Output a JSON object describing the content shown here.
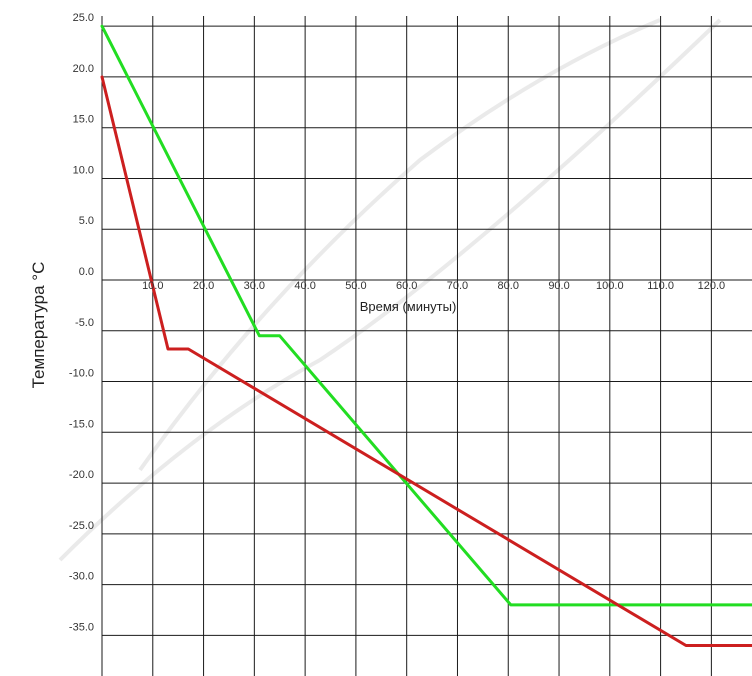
{
  "chart_data": {
    "type": "line",
    "xlabel": "Время (минуты)",
    "ylabel": "Температура °С",
    "x_ticks": [
      10,
      20,
      30,
      40,
      50,
      60,
      70,
      80,
      90,
      100,
      110,
      120
    ],
    "x_tick_labels": [
      "10.0",
      "20.0",
      "30.0",
      "40.0",
      "50.0",
      "60.0",
      "70.0",
      "80.0",
      "90.0",
      "100.0",
      "110.0",
      "120.0"
    ],
    "y_ticks": [
      25,
      20,
      15,
      10,
      5,
      0,
      -5,
      -10,
      -15,
      -20,
      -25,
      -30,
      -35
    ],
    "y_tick_labels": [
      "25.0",
      "20.0",
      "15.0",
      "10.0",
      "5.0",
      "0.0",
      "-5.0",
      "-10.0",
      "-15.0",
      "-20.0",
      "-25.0",
      "-30.0",
      "-35.0"
    ],
    "xlim": [
      0,
      128
    ],
    "ylim": [
      -39,
      26
    ],
    "grid": true,
    "series": [
      {
        "color": "#22dd22",
        "points": [
          [
            0,
            25
          ],
          [
            31,
            -5.5
          ],
          [
            35,
            -5.5
          ],
          [
            80.5,
            -32
          ],
          [
            128,
            -32
          ]
        ]
      },
      {
        "color": "#cc1f1f",
        "points": [
          [
            0,
            20
          ],
          [
            13,
            -6.8
          ],
          [
            17,
            -6.8
          ],
          [
            115,
            -36
          ],
          [
            128,
            -36
          ]
        ]
      }
    ]
  }
}
